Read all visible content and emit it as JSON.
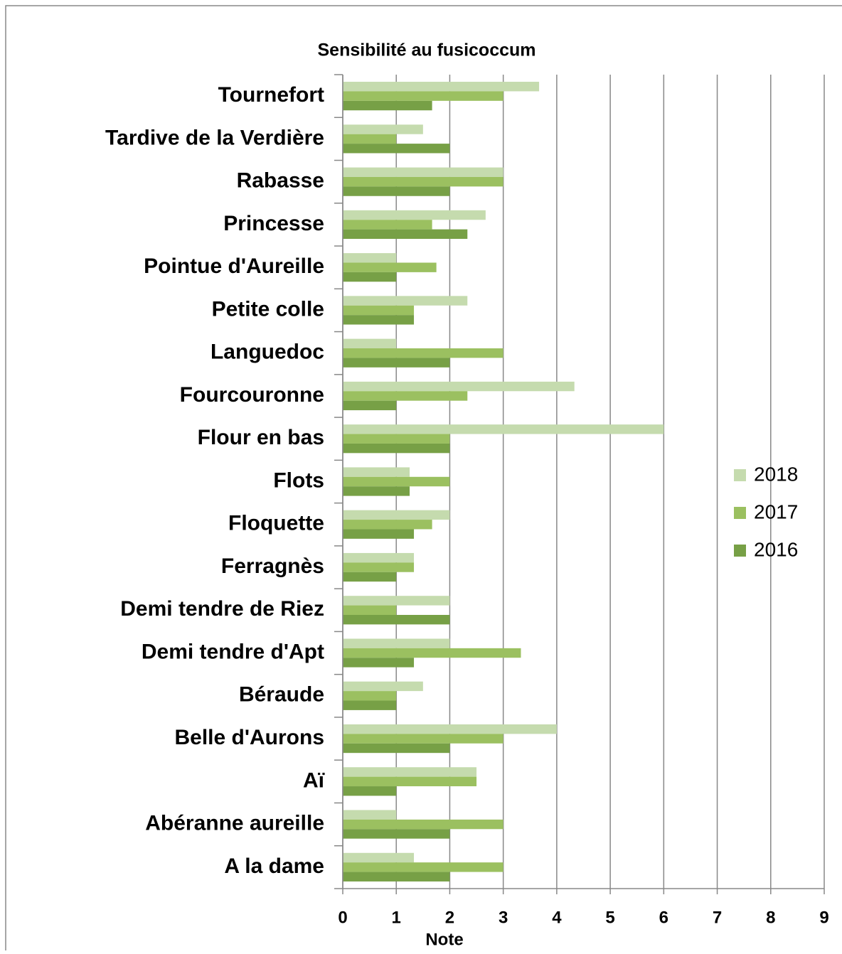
{
  "chart_data": {
    "type": "barh",
    "title": "Sensibilité au fusicoccum",
    "xlabel": "Note",
    "categories": [
      "Tournefort",
      "Tardive de la Verdière",
      "Rabasse",
      "Princesse",
      "Pointue d'Aureille",
      "Petite colle",
      "Languedoc",
      "Fourcouronne",
      "Flour en bas",
      "Flots",
      "Floquette",
      "Ferragnès",
      "Demi tendre de Riez",
      "Demi tendre d'Apt",
      "Béraude",
      "Belle d'Aurons",
      "Aï",
      "Abéranne aureille",
      "A la dame"
    ],
    "series": [
      {
        "name": "2018",
        "color": "#c5dbae",
        "values": [
          3.67,
          1.5,
          3,
          2.67,
          1,
          2.33,
          1,
          4.33,
          6,
          1.25,
          2,
          1.33,
          2,
          2,
          1.5,
          4,
          2.5,
          1,
          1.33
        ]
      },
      {
        "name": "2017",
        "color": "#9bc060",
        "values": [
          3,
          1,
          3,
          1.67,
          1.75,
          1.33,
          3,
          2.33,
          2,
          2,
          1.67,
          1.33,
          1,
          3.33,
          1,
          3,
          2.5,
          3,
          3
        ]
      },
      {
        "name": "2016",
        "color": "#77a046",
        "values": [
          1.67,
          2,
          2,
          2.33,
          1,
          1.33,
          2,
          1,
          2,
          1.25,
          1.33,
          1,
          2,
          1.33,
          1,
          2,
          1,
          2,
          2
        ]
      }
    ],
    "xlim": [
      0,
      9
    ],
    "xticks": [
      0,
      1,
      2,
      3,
      4,
      5,
      6,
      7,
      8,
      9
    ],
    "grid": true,
    "legend": "right"
  }
}
